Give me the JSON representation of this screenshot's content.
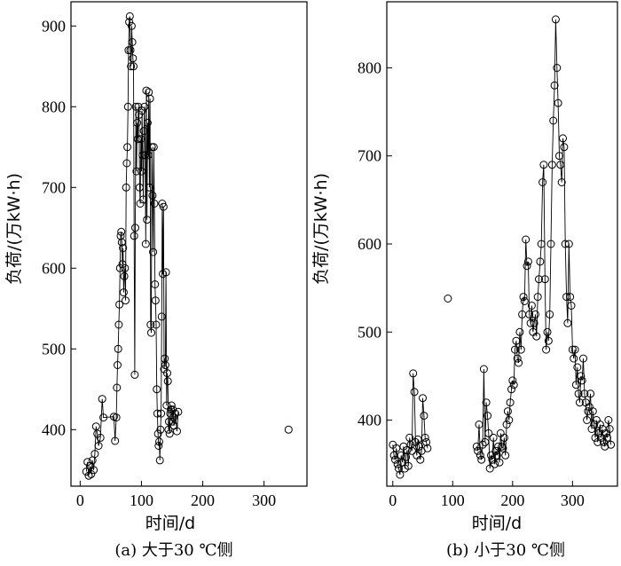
{
  "chart_data": [
    {
      "type": "line",
      "caption": "(a) 大于30 ℃侧",
      "xlabel": "时间/d",
      "ylabel": "负荷/(万kW·h)",
      "xlim": [
        -15,
        370
      ],
      "ylim": [
        330,
        930
      ],
      "xticks": [
        0,
        100,
        200,
        300
      ],
      "yticks": [
        400,
        500,
        600,
        700,
        800,
        900
      ],
      "grid": false,
      "legend": "none",
      "marker": "open-circle",
      "series": [
        {
          "x": [
            10,
            12,
            14,
            16,
            18,
            20,
            22,
            24,
            26,
            28,
            30,
            33,
            36,
            38,
            55,
            57,
            59,
            60,
            61,
            62,
            63,
            64,
            65,
            66,
            67,
            68,
            69,
            70,
            71,
            72,
            73,
            74,
            75,
            76,
            77,
            78,
            79,
            80,
            81,
            82,
            83,
            84,
            85,
            86,
            87,
            88,
            89,
            90,
            91,
            92,
            93,
            94,
            95,
            96,
            97,
            98,
            99,
            100,
            101,
            102,
            103,
            104,
            105,
            106,
            107,
            108,
            109,
            110,
            111,
            112,
            113,
            114,
            115,
            116,
            117,
            118,
            119,
            120,
            121,
            122,
            123,
            124,
            125,
            126,
            127,
            128,
            129,
            130,
            131,
            132,
            133,
            134,
            135,
            136,
            137,
            138,
            139,
            140,
            141,
            142,
            143,
            144,
            145,
            146,
            147,
            148,
            149,
            150,
            151,
            152,
            153,
            155,
            158,
            160
          ],
          "y": [
            348,
            360,
            343,
            355,
            345,
            362,
            350,
            370,
            404,
            395,
            380,
            390,
            438,
            415,
            416,
            386,
            415,
            452,
            480,
            500,
            530,
            555,
            600,
            640,
            645,
            632,
            605,
            625,
            570,
            590,
            600,
            560,
            700,
            730,
            750,
            800,
            870,
            905,
            912,
            870,
            850,
            900,
            880,
            860,
            850,
            640,
            468,
            650,
            800,
            720,
            780,
            760,
            800,
            790,
            700,
            680,
            760,
            720,
            795,
            740,
            685,
            770,
            800,
            740,
            630,
            820,
            660,
            780,
            740,
            818,
            700,
            810,
            530,
            520,
            750,
            690,
            620,
            750,
            680,
            580,
            560,
            530,
            450,
            420,
            395,
            380,
            385,
            362,
            400,
            420,
            540,
            680,
            593,
            676,
            475,
            488,
            480,
            595,
            430,
            470,
            460,
            400,
            410,
            395,
            420,
            425,
            430,
            410,
            425,
            415,
            405,
            420,
            398,
            422
          ]
        },
        {
          "x": [
            340
          ],
          "y": [
            400
          ]
        }
      ]
    },
    {
      "type": "line",
      "caption": "(b) 小于30 ℃侧",
      "xlabel": "时间/d",
      "ylabel": "负荷/(万kW·h)",
      "xlim": [
        -10,
        375
      ],
      "ylim": [
        325,
        875
      ],
      "xticks": [
        0,
        100,
        200,
        300
      ],
      "yticks": [
        400,
        500,
        600,
        700,
        800
      ],
      "grid": false,
      "legend": "none",
      "marker": "open-circle",
      "series": [
        {
          "x": [
            0,
            2,
            4,
            6,
            8,
            10,
            12,
            14,
            16,
            18,
            20,
            22,
            24,
            26,
            28,
            30,
            32,
            34,
            36,
            38,
            40,
            42,
            44,
            46,
            48,
            50,
            52,
            54,
            56,
            58
          ],
          "y": [
            372,
            360,
            355,
            368,
            350,
            345,
            338,
            360,
            352,
            370,
            345,
            358,
            366,
            348,
            380,
            372,
            365,
            453,
            432,
            375,
            360,
            378,
            370,
            355,
            365,
            425,
            405,
            380,
            375,
            368
          ]
        },
        {
          "x": [
            92
          ],
          "y": [
            538
          ]
        },
        {
          "x": [
            140,
            142,
            144,
            146,
            148,
            150,
            152,
            154,
            156,
            158,
            160,
            162,
            164,
            166,
            168,
            170,
            172,
            174,
            176,
            178,
            180,
            182,
            184,
            186,
            188,
            190,
            192,
            194,
            196,
            198,
            200,
            202,
            204,
            206,
            208,
            210,
            212,
            214,
            216,
            218,
            220,
            222,
            224,
            226,
            228,
            230,
            232,
            234,
            236,
            238,
            240,
            242,
            244,
            246,
            248,
            250,
            252,
            254,
            256,
            258,
            260,
            262,
            264,
            266,
            268,
            270,
            272,
            274,
            276,
            278,
            280,
            282,
            284,
            286,
            288,
            290,
            292,
            294,
            296,
            298,
            300,
            302,
            304,
            306,
            308,
            310,
            312,
            314,
            316,
            318,
            320,
            322,
            324,
            326,
            328,
            330,
            332,
            334,
            336,
            338,
            340,
            342,
            344,
            346,
            348,
            350,
            352,
            354,
            356,
            358,
            360,
            362,
            364
          ],
          "y": [
            370,
            365,
            395,
            360,
            355,
            372,
            458,
            375,
            420,
            405,
            385,
            345,
            360,
            355,
            380,
            350,
            365,
            360,
            370,
            352,
            385,
            370,
            368,
            380,
            360,
            395,
            410,
            400,
            420,
            435,
            445,
            440,
            480,
            490,
            470,
            465,
            500,
            480,
            520,
            540,
            535,
            605,
            575,
            580,
            520,
            510,
            530,
            500,
            510,
            520,
            495,
            540,
            560,
            580,
            600,
            670,
            690,
            560,
            480,
            500,
            490,
            520,
            600,
            690,
            740,
            780,
            855,
            800,
            760,
            700,
            690,
            670,
            720,
            710,
            600,
            540,
            510,
            600,
            540,
            530,
            480,
            470,
            480,
            440,
            460,
            430,
            420,
            450,
            445,
            470,
            430,
            420,
            400,
            410,
            415,
            430,
            390,
            410,
            395,
            380,
            400,
            375,
            385,
            395,
            380,
            390,
            375,
            370,
            385,
            380,
            400,
            390,
            372
          ]
        }
      ]
    }
  ]
}
